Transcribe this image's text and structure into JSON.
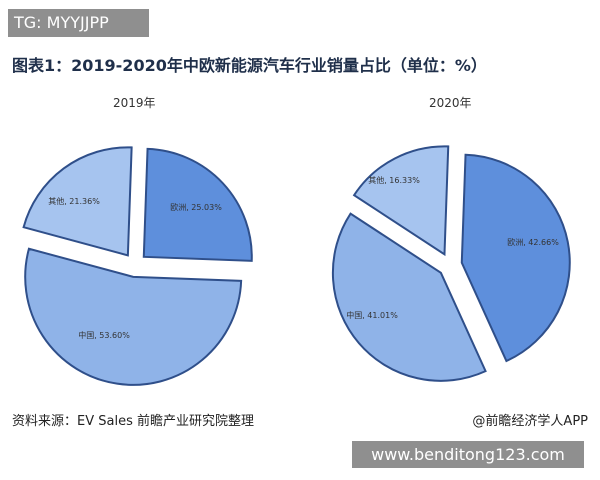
{
  "watermark_top": "TG: MYYJJPP",
  "title": "图表1：2019-2020年中欧新能源汽车行业销量占比（单位：%）",
  "source": "资料来源：EV Sales 前瞻产业研究院整理",
  "credit": "@前瞻经济学人APP",
  "watermark_bottom": "www.benditong123.com",
  "colors": {
    "dark_blue": "#5e8fdc",
    "light_blue": "#a6c4ef",
    "edge": "#2f4f8a"
  },
  "chart_data": [
    {
      "type": "pie",
      "title": "2019年",
      "slices": [
        {
          "label": "欧洲",
          "value": 25.03,
          "display": "欧洲, 25.03%",
          "color": "#5e8fdc"
        },
        {
          "label": "中国",
          "value": 53.6,
          "display": "中国, 53.60%",
          "color": "#8fb3e8"
        },
        {
          "label": "其他",
          "value": 21.36,
          "display": "其他, 21.36%",
          "color": "#a6c4ef"
        }
      ]
    },
    {
      "type": "pie",
      "title": "2020年",
      "slices": [
        {
          "label": "欧洲",
          "value": 42.66,
          "display": "欧洲, 42.66%",
          "color": "#5e8fdc"
        },
        {
          "label": "中国",
          "value": 41.01,
          "display": "中国, 41.01%",
          "color": "#8fb3e8"
        },
        {
          "label": "其他",
          "value": 16.33,
          "display": "其他, 16.33%",
          "color": "#a6c4ef"
        }
      ]
    }
  ]
}
